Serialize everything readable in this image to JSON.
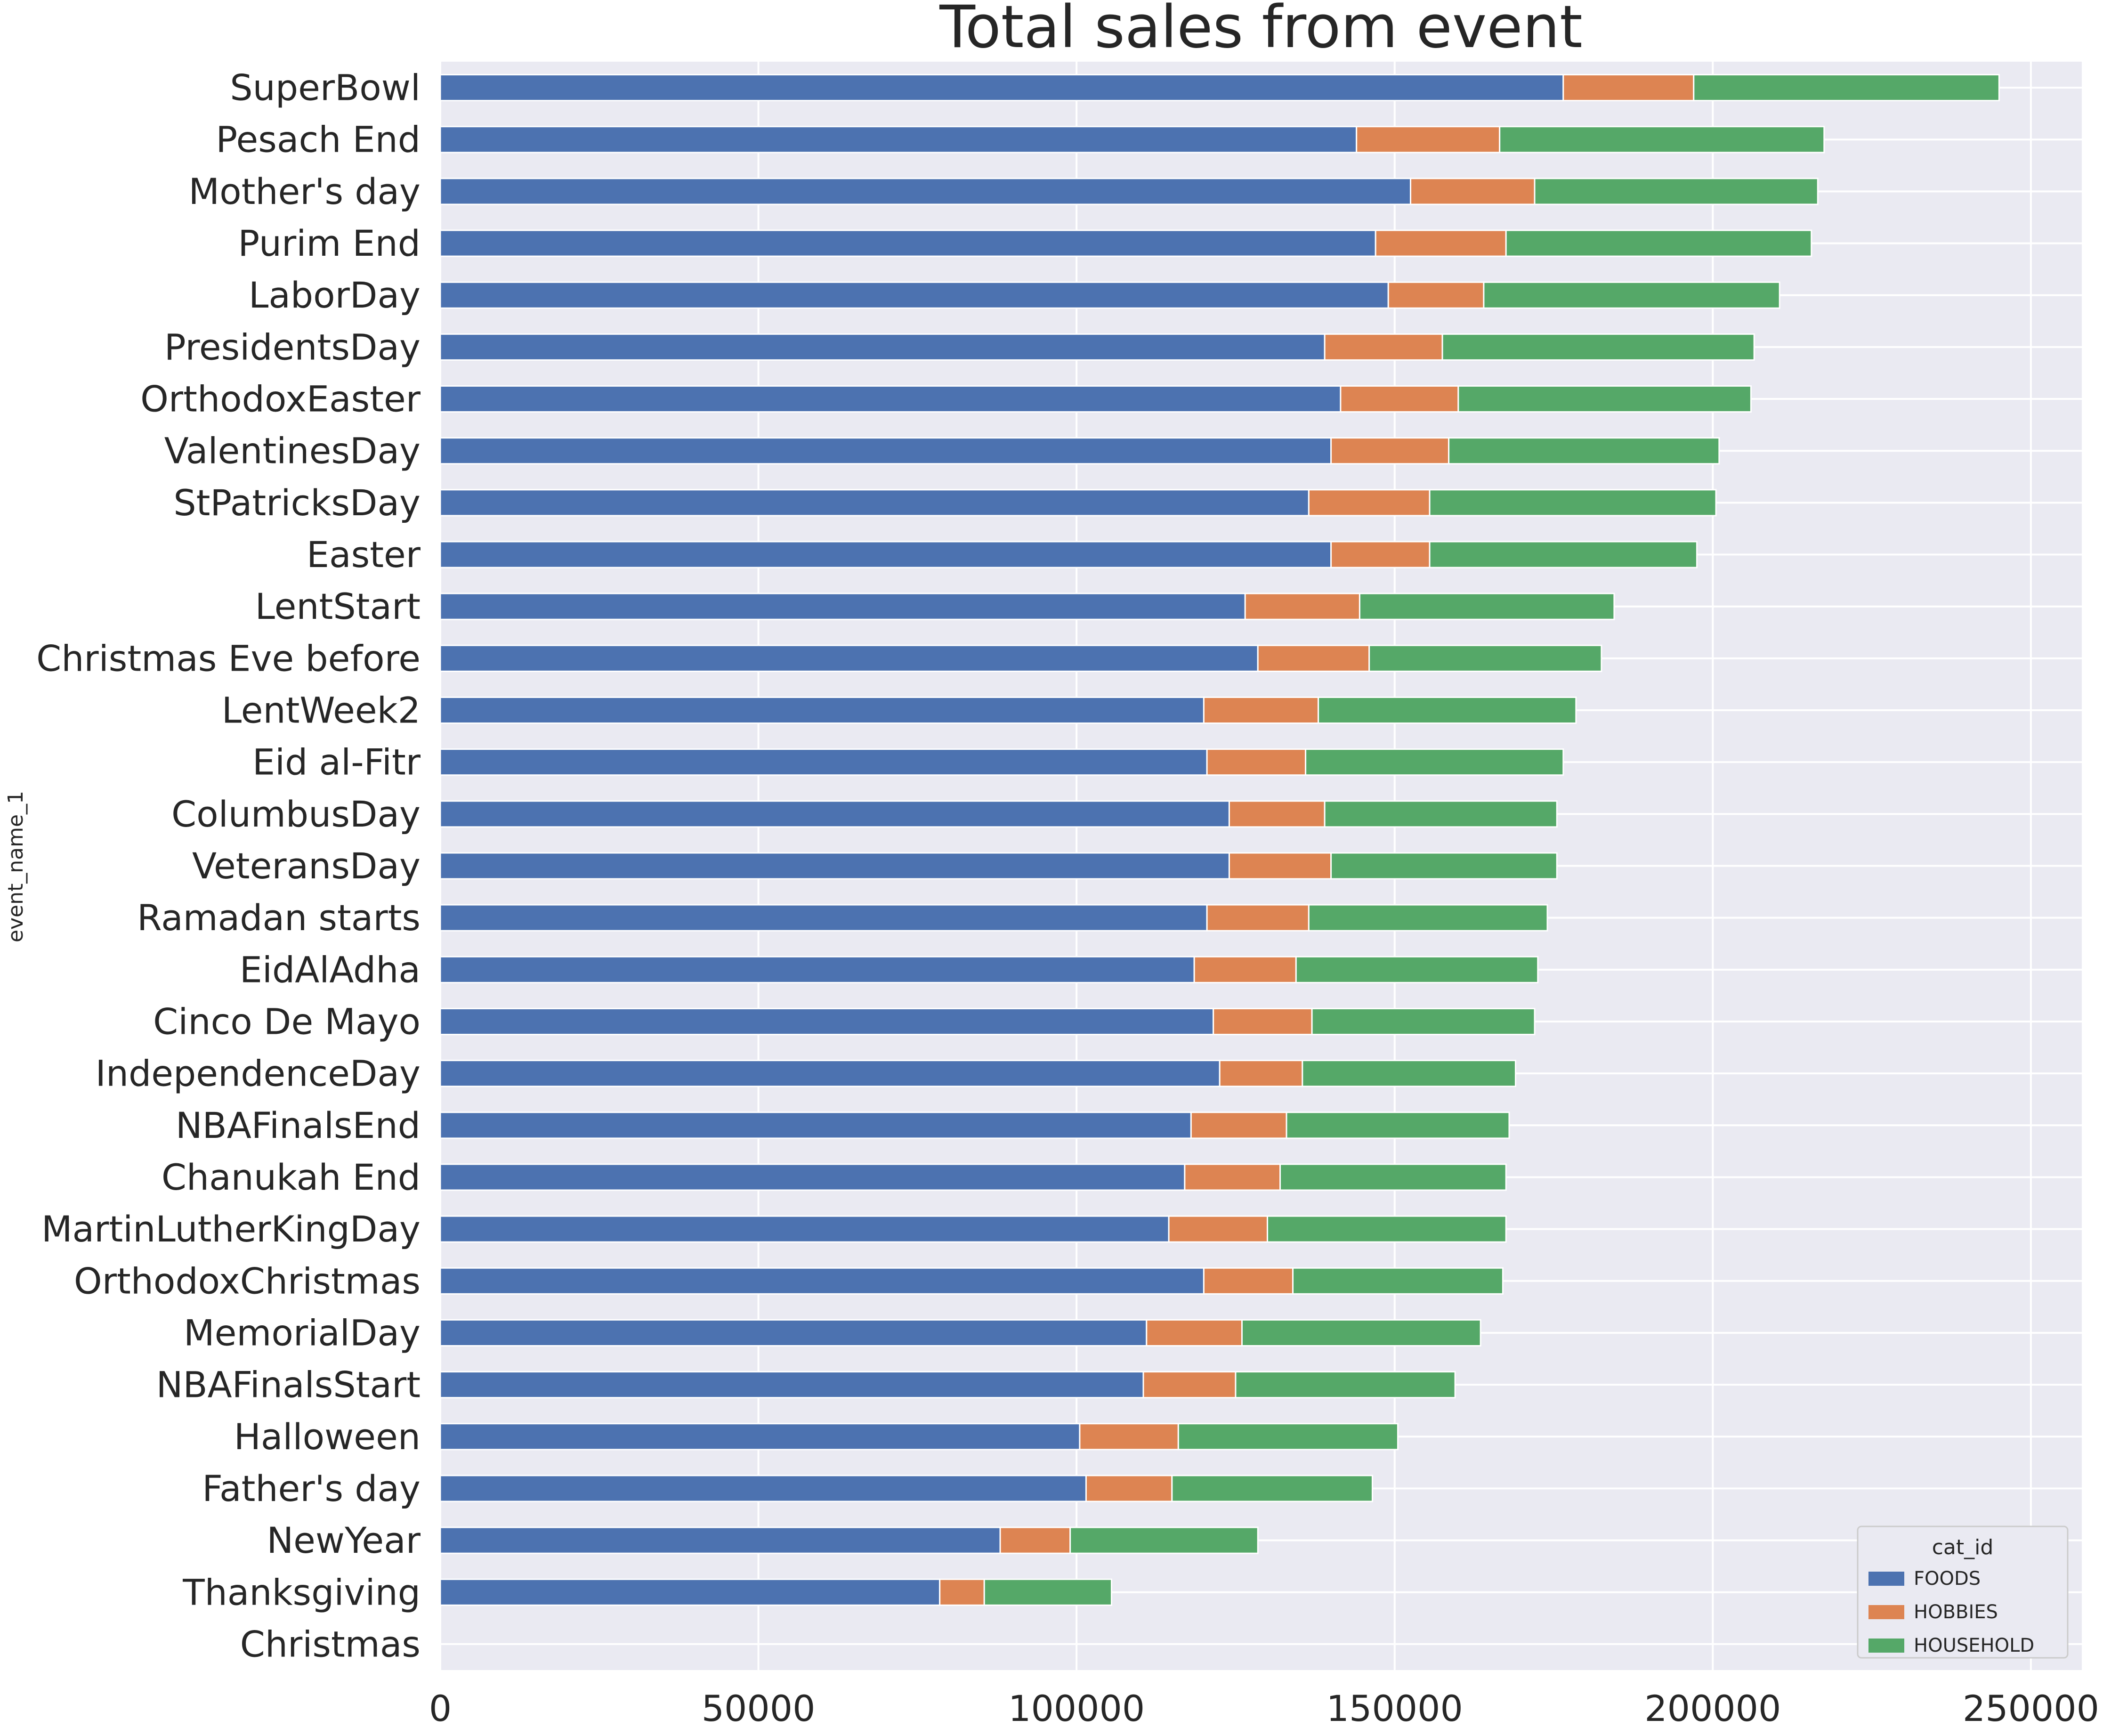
{
  "chart_data": {
    "type": "bar",
    "orientation": "horizontal",
    "stacked": true,
    "title": "Total sales from event",
    "ylabel": "event_name_1",
    "xlabel": "",
    "xlim": [
      0,
      258000
    ],
    "xticks": [
      0,
      50000,
      100000,
      150000,
      200000,
      250000
    ],
    "grid": true,
    "legend": {
      "title": "cat_id",
      "placement": "bottom-right"
    },
    "categories": [
      "SuperBowl",
      "Pesach End",
      "Mother's day",
      "Purim End",
      "LaborDay",
      "PresidentsDay",
      "OrthodoxEaster",
      "ValentinesDay",
      "StPatricksDay",
      "Easter",
      "LentStart",
      "Christmas Eve before",
      "LentWeek2",
      "Eid al-Fitr",
      "ColumbusDay",
      "VeteransDay",
      "Ramadan starts",
      "EidAlAdha",
      "Cinco De Mayo",
      "IndependenceDay",
      "NBAFinalsEnd",
      "Chanukah End",
      "MartinLutherKingDay",
      "OrthodoxChristmas",
      "MemorialDay",
      "NBAFinalsStart",
      "Halloween",
      "Father's day",
      "NewYear",
      "Thanksgiving",
      "Christmas"
    ],
    "series": [
      {
        "name": "FOODS",
        "color": "#4c72b0",
        "values": [
          176500,
          144000,
          152500,
          147000,
          149000,
          139000,
          141500,
          140000,
          136500,
          140000,
          126500,
          128500,
          120000,
          120500,
          124000,
          124000,
          120500,
          118500,
          121500,
          122500,
          118000,
          117000,
          114500,
          120000,
          111000,
          110500,
          100500,
          101500,
          88000,
          78500,
          0
        ]
      },
      {
        "name": "HOBBIES",
        "color": "#dd8452",
        "values": [
          20500,
          22500,
          19500,
          20500,
          15000,
          18500,
          18500,
          18500,
          19000,
          15500,
          18000,
          17500,
          18000,
          15500,
          15000,
          16000,
          16000,
          16000,
          15500,
          13000,
          15000,
          15000,
          15500,
          14000,
          15000,
          14500,
          15500,
          13500,
          11000,
          7000,
          0
        ]
      },
      {
        "name": "HOUSEHOLD",
        "color": "#55a868",
        "values": [
          48000,
          51000,
          44500,
          48000,
          46500,
          49000,
          46000,
          42500,
          45000,
          42000,
          40000,
          36500,
          40500,
          40500,
          36500,
          35500,
          37500,
          38000,
          35000,
          33500,
          35000,
          35500,
          37500,
          33000,
          37500,
          34500,
          34500,
          31500,
          29500,
          20000,
          0
        ]
      }
    ]
  }
}
